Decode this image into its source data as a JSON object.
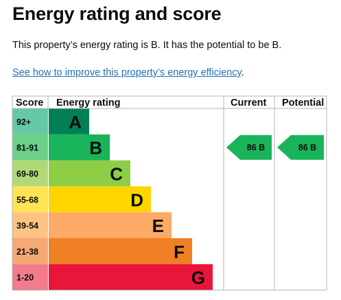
{
  "page": {
    "title": "Energy rating and score",
    "summary": "This property’s energy rating is B. It has the potential to be B.",
    "link_text": "See how to improve this property’s energy efficiency",
    "link_suffix": "."
  },
  "chart_data": {
    "type": "bar",
    "headers": {
      "score": "Score",
      "rating": "Energy rating",
      "current": "Current",
      "potential": "Potential"
    },
    "bands": [
      {
        "score": "92+",
        "letter": "A",
        "color": "#64c9a4",
        "bar_color": "#008054"
      },
      {
        "score": "81-91",
        "letter": "B",
        "color": "#6bd18a",
        "bar_color": "#19b459"
      },
      {
        "score": "69-80",
        "letter": "C",
        "color": "#b2d977",
        "bar_color": "#8dce46"
      },
      {
        "score": "55-68",
        "letter": "D",
        "color": "#ffe455",
        "bar_color": "#ffd500"
      },
      {
        "score": "39-54",
        "letter": "E",
        "color": "#fdc383",
        "bar_color": "#fcaa65"
      },
      {
        "score": "21-38",
        "letter": "F",
        "color": "#f5a873",
        "bar_color": "#ef8023"
      },
      {
        "score": "1-20",
        "letter": "G",
        "color": "#f27b8c",
        "bar_color": "#e9153b"
      }
    ],
    "current": {
      "score": 86,
      "letter": "B",
      "label": "86  B",
      "color": "#19b459"
    },
    "potential": {
      "score": 86,
      "letter": "B",
      "label": "86  B",
      "color": "#19b459"
    }
  }
}
